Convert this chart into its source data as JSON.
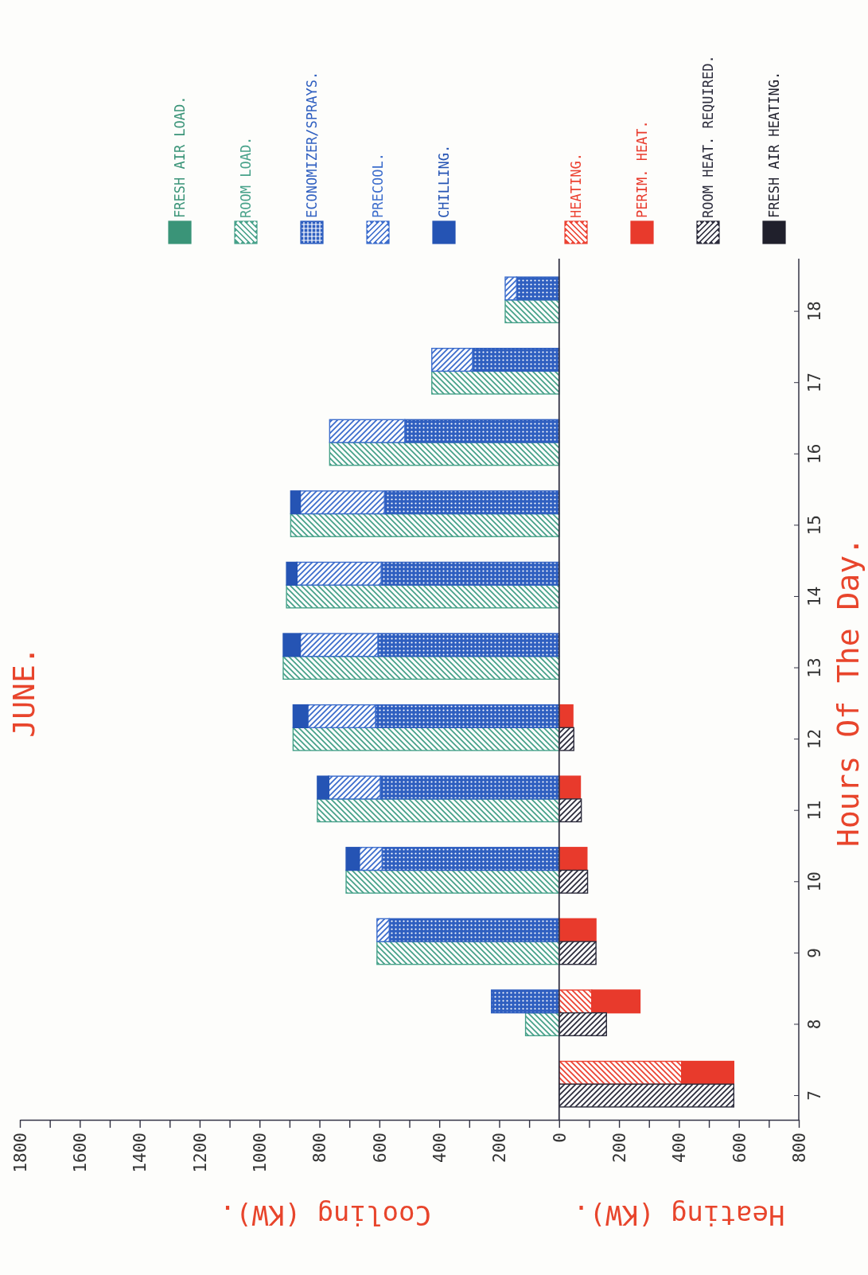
{
  "chart_data": {
    "type": "bar",
    "orientation": "horizontal",
    "title": "JUNE.",
    "ylabel": "Hours Of The Day.",
    "xlabel": "Cooling (KW).",
    "annotations": [
      "Heating (KW)."
    ],
    "categories": [
      null,
      "18",
      null,
      "17",
      null,
      "16",
      null,
      "15",
      null,
      "14",
      null,
      "13",
      null,
      "12",
      null,
      "11",
      null,
      "10",
      null,
      "9",
      null,
      "8",
      null,
      "7"
    ],
    "stacked": true,
    "legend": "top right",
    "grid": false,
    "ref_lines": [
      {
        "axis": "x",
        "value": 0,
        "color": "#333344"
      }
    ],
    "xlim": [
      1800,
      -800
    ],
    "xticks": [
      {
        "value": -800,
        "label": "800"
      },
      {
        "value": -700,
        "label": null
      },
      {
        "value": -600,
        "label": "600"
      },
      {
        "value": -500,
        "label": null
      },
      {
        "value": -400,
        "label": "400"
      },
      {
        "value": -300,
        "label": null
      },
      {
        "value": -200,
        "label": "200"
      },
      {
        "value": -100,
        "label": null
      },
      0,
      {
        "value": 100,
        "label": null
      },
      200,
      {
        "value": 300,
        "label": null
      },
      400,
      {
        "value": 500,
        "label": null
      },
      600,
      {
        "value": 700,
        "label": null
      },
      800,
      {
        "value": 900,
        "label": null
      },
      1000,
      {
        "value": 1100,
        "label": null
      },
      1200,
      {
        "value": 1300,
        "label": null
      },
      1400,
      {
        "value": 1500,
        "label": null
      },
      1600,
      {
        "value": 1700,
        "label": null
      },
      1800
    ],
    "series": [
      {
        "name": "FRESH AIR LOAD.",
        "color": "#3a9478",
        "values": [
          null,
          0,
          null,
          0,
          null,
          0,
          null,
          0,
          null,
          0,
          null,
          0,
          null,
          0,
          null,
          0,
          null,
          0,
          null,
          0,
          null,
          0,
          null,
          0
        ]
      },
      {
        "name": "ROOM LOAD.",
        "color": "#46a189",
        "values": [
          null,
          180,
          null,
          425,
          null,
          766,
          null,
          896,
          null,
          910,
          null,
          921,
          null,
          888,
          null,
          807,
          null,
          711,
          null,
          608,
          null,
          112,
          null,
          0
        ]
      },
      {
        "name": "ECONOMIZER/SPRAYS.",
        "color": "#2f5fc0",
        "values": [
          142,
          null,
          289,
          null,
          515,
          null,
          583,
          null,
          594,
          null,
          605,
          null,
          613,
          null,
          597,
          null,
          591,
          null,
          567,
          null,
          226,
          null,
          0,
          null
        ]
      },
      {
        "name": "PRECOOL.",
        "color": "#3b6ccc",
        "values": [
          38,
          null,
          136,
          null,
          251,
          null,
          281,
          null,
          281,
          null,
          259,
          null,
          226,
          null,
          172,
          null,
          76,
          null,
          41,
          null,
          0,
          null,
          0,
          null
        ]
      },
      {
        "name": "CHILLING.",
        "color": "#2554b4",
        "values": [
          0,
          null,
          0,
          null,
          0,
          null,
          32,
          null,
          35,
          null,
          57,
          null,
          49,
          null,
          38,
          null,
          44,
          null,
          0,
          null,
          0,
          null,
          0,
          null
        ]
      },
      {
        "name": "HEATING.",
        "color": "#ec4232",
        "values": [
          0,
          null,
          0,
          null,
          0,
          null,
          0,
          null,
          0,
          null,
          0,
          null,
          0,
          null,
          0,
          null,
          0,
          null,
          0,
          null,
          -109,
          null,
          -409,
          null
        ]
      },
      {
        "name": "PERIM. HEAT.",
        "color": "#e83a2c",
        "values": [
          0,
          null,
          0,
          null,
          0,
          null,
          0,
          null,
          0,
          null,
          0,
          null,
          -46,
          null,
          -71,
          null,
          -93,
          null,
          -123,
          null,
          -161,
          null,
          -174,
          null
        ]
      },
      {
        "name": "ROOM HEAT. REQUIRED.",
        "color": "#2b2b3b",
        "values": [
          null,
          0,
          null,
          0,
          null,
          0,
          null,
          0,
          null,
          0,
          null,
          0,
          null,
          -49,
          null,
          -74,
          null,
          -95,
          null,
          -123,
          null,
          -158,
          null,
          -583
        ]
      },
      {
        "name": "FRESH AIR HEATING.",
        "color": "#20202c",
        "values": [
          null,
          0,
          null,
          0,
          null,
          0,
          null,
          0,
          null,
          0,
          null,
          0,
          null,
          0,
          null,
          0,
          null,
          0,
          null,
          0,
          null,
          0,
          null,
          0
        ]
      }
    ]
  }
}
